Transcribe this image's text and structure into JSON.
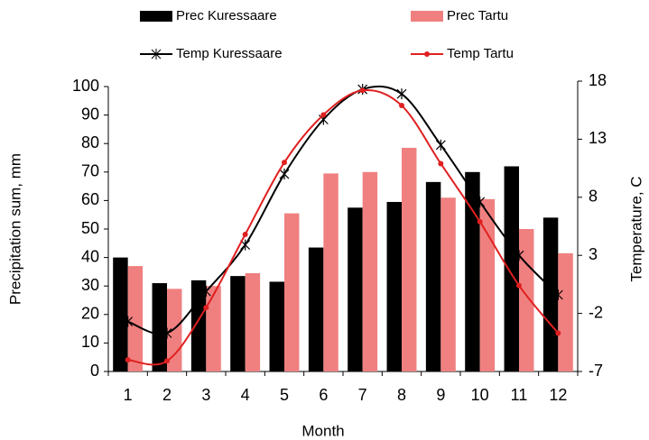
{
  "chart_data": {
    "type": "bar-line",
    "x_label": "Month",
    "y_label": "Precipitation sum, mm",
    "y2_label": "Temperature, C",
    "categories": [
      "1",
      "2",
      "3",
      "4",
      "5",
      "6",
      "7",
      "8",
      "9",
      "10",
      "11",
      "12"
    ],
    "series": [
      {
        "name": "Prec Kuressaare",
        "kind": "bar",
        "color": "#000000",
        "values": [
          40,
          31,
          32,
          33.5,
          31.5,
          43.5,
          57.5,
          59.5,
          66.5,
          70,
          72,
          54
        ]
      },
      {
        "name": "Prec Tartu",
        "kind": "bar",
        "color": "#f08080",
        "values": [
          37,
          29,
          30,
          34.5,
          55.5,
          69.5,
          70,
          78.5,
          61,
          60.5,
          50,
          41.5
        ]
      },
      {
        "name": "Temp Kuressaare",
        "kind": "line",
        "axis": "y2",
        "marker": "star",
        "color": "#000000",
        "values": [
          -2.7,
          -3.7,
          -0.1,
          3.9,
          10.0,
          14.7,
          17.3,
          16.9,
          12.5,
          7.6,
          3.0,
          -0.4
        ]
      },
      {
        "name": "Temp Tartu",
        "kind": "line",
        "axis": "y2",
        "marker": "dot",
        "color": "#e02020",
        "values": [
          -6.0,
          -6.1,
          -1.5,
          4.8,
          11.0,
          15.1,
          17.2,
          15.9,
          10.9,
          5.9,
          0.4,
          -3.7
        ]
      }
    ],
    "ylim": [
      0,
      100
    ],
    "yticks": [
      0,
      10,
      20,
      30,
      40,
      50,
      60,
      70,
      80,
      90,
      100
    ],
    "y2lim": [
      -7,
      18
    ],
    "y2ticks": [
      -7,
      -2,
      3,
      8,
      13,
      18
    ]
  }
}
